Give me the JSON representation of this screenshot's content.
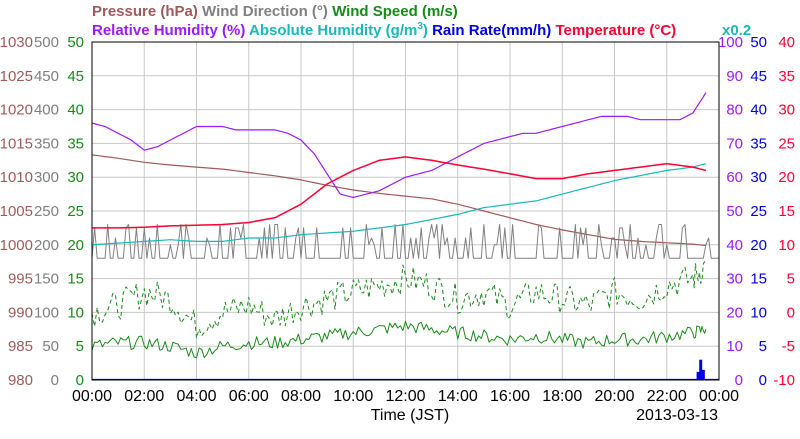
{
  "chart_data": {
    "type": "line",
    "date": "2013-03-13",
    "xlabel": "Time (JST)",
    "x_ticks": [
      "00:00",
      "02:00",
      "04:00",
      "06:00",
      "08:00",
      "10:00",
      "12:00",
      "14:00",
      "16:00",
      "18:00",
      "20:00",
      "22:00",
      "00:00"
    ],
    "x_range_hours": [
      0,
      24
    ],
    "grid": true,
    "legend_line1": [
      {
        "label": "Pressure (hPa)",
        "color": "#a05a5a"
      },
      {
        "label": "Wind Direction (°)",
        "color": "#808080"
      },
      {
        "label": "Wind Speed (m/s)",
        "color": "#1a8a1a"
      }
    ],
    "legend_line2": [
      {
        "label": "Relative Humidity (%)",
        "color": "#9a1aff"
      },
      {
        "label": "Absolute Humidity (g/m",
        "sup": "3",
        "tail": ")",
        "color": "#1ab8b8"
      },
      {
        "label": "Rain Rate(mm/h)",
        "color": "#0000e0"
      },
      {
        "label": "Temperature (°C)",
        "color": "#ff0033"
      }
    ],
    "abs_humidity_note": "x0.2",
    "axes": {
      "pressure": {
        "color": "#a05a5a",
        "range": [
          980,
          1030
        ],
        "ticks": [
          "1030",
          "1025",
          "1020",
          "1015",
          "1010",
          "1005",
          "1000",
          "995",
          "990",
          "985",
          "980"
        ]
      },
      "wind_direction": {
        "color": "#808080",
        "range": [
          0,
          500
        ],
        "ticks": [
          "500",
          "450",
          "400",
          "350",
          "300",
          "250",
          "200",
          "150",
          "100",
          "50",
          "0"
        ]
      },
      "wind_speed": {
        "color": "#1a8a1a",
        "range": [
          0,
          50
        ],
        "ticks": [
          "50",
          "45",
          "40",
          "35",
          "30",
          "25",
          "20",
          "15",
          "10",
          "5",
          "0"
        ]
      },
      "humidity": {
        "color": "#9a1aff",
        "range": [
          0,
          100
        ],
        "ticks": [
          "100",
          "90",
          "80",
          "70",
          "60",
          "50",
          "40",
          "30",
          "20",
          "10",
          "0"
        ]
      },
      "rain_rate": {
        "color": "#0000e0",
        "range": [
          0,
          50
        ],
        "ticks": [
          "50",
          "45",
          "40",
          "35",
          "30",
          "25",
          "20",
          "15",
          "10",
          "5",
          "0"
        ]
      },
      "temperature": {
        "color": "#ff0033",
        "range": [
          -10,
          40
        ],
        "ticks": [
          "40",
          "35",
          "30",
          "25",
          "20",
          "15",
          "10",
          "5",
          "0",
          "-5",
          "-10"
        ]
      }
    },
    "series": [
      {
        "name": "Pressure (hPa)",
        "axis": "pressure",
        "color": "#a05a5a",
        "style": "solid",
        "width": 1.2,
        "x": [
          0,
          1,
          2,
          3,
          4,
          5,
          6,
          7,
          8,
          9,
          10,
          11,
          12,
          13,
          14,
          15,
          16,
          17,
          18,
          19,
          20,
          21,
          22,
          23,
          23.5
        ],
        "y": [
          1013.3,
          1012.8,
          1012.2,
          1011.8,
          1011.5,
          1011.2,
          1010.7,
          1010.2,
          1009.6,
          1008.8,
          1008.1,
          1007.6,
          1007.2,
          1006.8,
          1006.0,
          1005.0,
          1004.0,
          1003.0,
          1002.2,
          1001.5,
          1000.8,
          1000.5,
          1000.3,
          1000.1,
          999.9
        ]
      },
      {
        "name": "Wind Direction (°)",
        "axis": "wind_direction",
        "color": "#808080",
        "style": "spiky",
        "width": 1.0,
        "base": 180,
        "peaks": [
          225,
          200,
          230,
          210,
          225
        ],
        "x": [
          0,
          24
        ],
        "y": [
          180,
          180
        ]
      },
      {
        "name": "Wind Speed (m/s) gust",
        "axis": "wind_speed",
        "color": "#1a8a1a",
        "style": "dashed",
        "width": 1.0,
        "x": [
          0,
          1,
          2,
          3,
          4,
          5,
          6,
          7,
          8,
          9,
          10,
          11,
          12,
          13,
          14,
          15,
          16,
          17,
          18,
          19,
          20,
          21,
          22,
          23,
          23.5
        ],
        "y": [
          10,
          11,
          13,
          12,
          8,
          10,
          11,
          9,
          11,
          12,
          13,
          14,
          15,
          14,
          12,
          13,
          11,
          13,
          12,
          11,
          13,
          12,
          14,
          15,
          17
        ]
      },
      {
        "name": "Wind Speed (m/s)",
        "axis": "wind_speed",
        "color": "#1a8a1a",
        "style": "solid",
        "width": 1.0,
        "x": [
          0,
          1,
          2,
          3,
          4,
          5,
          6,
          7,
          8,
          9,
          10,
          11,
          12,
          13,
          14,
          15,
          16,
          17,
          18,
          19,
          20,
          21,
          22,
          23,
          23.5
        ],
        "y": [
          5,
          5.5,
          5.5,
          5,
          4,
          5,
          5.5,
          5.5,
          6,
          6.5,
          7,
          7.5,
          8,
          7.5,
          7,
          6.5,
          6,
          6.5,
          6,
          5.5,
          6,
          6,
          6.5,
          7,
          7.5
        ]
      },
      {
        "name": "Relative Humidity (%)",
        "axis": "humidity",
        "color": "#9a1aff",
        "style": "solid",
        "width": 1.2,
        "x": [
          0,
          0.5,
          1,
          1.5,
          2,
          2.5,
          3,
          3.5,
          4,
          4.5,
          5,
          5.5,
          6,
          6.5,
          7,
          7.5,
          8,
          8.5,
          9,
          9.5,
          10,
          10.5,
          11,
          11.5,
          12,
          12.5,
          13,
          13.5,
          14,
          14.5,
          15,
          15.5,
          16,
          16.5,
          17,
          17.5,
          18,
          18.5,
          19,
          19.5,
          20,
          20.5,
          21,
          21.5,
          22,
          22.5,
          23,
          23.5
        ],
        "y": [
          76,
          75,
          73,
          71,
          68,
          69,
          71,
          73,
          75,
          75,
          75,
          74,
          74,
          74,
          74,
          73,
          71,
          67,
          61,
          55,
          54,
          55,
          56,
          58,
          60,
          61,
          62,
          64,
          66,
          68,
          70,
          71,
          72,
          73,
          73,
          74,
          75,
          76,
          77,
          78,
          78,
          78,
          77,
          77,
          77,
          77,
          79,
          85
        ]
      },
      {
        "name": "Absolute Humidity (g/m3) x0.2",
        "axis": "humidity",
        "color": "#1ab8b8",
        "style": "solid",
        "width": 1.2,
        "x": [
          0,
          1,
          2,
          3,
          4,
          5,
          6,
          7,
          8,
          9,
          10,
          11,
          12,
          13,
          14,
          15,
          16,
          17,
          18,
          19,
          20,
          21,
          22,
          23,
          23.5
        ],
        "y": [
          40,
          40.5,
          41,
          41.5,
          41,
          41,
          42,
          42,
          43,
          43.5,
          44,
          45,
          46,
          47.5,
          49,
          51,
          52,
          53,
          55,
          57,
          59,
          60.5,
          62,
          63,
          64
        ]
      },
      {
        "name": "Temperature (°C)",
        "axis": "temperature",
        "color": "#ff0033",
        "style": "solid",
        "width": 1.5,
        "x": [
          0,
          1,
          2,
          3,
          4,
          5,
          6,
          7,
          8,
          9,
          10,
          11,
          12,
          13,
          14,
          15,
          16,
          17,
          18,
          19,
          20,
          21,
          22,
          23,
          23.5
        ],
        "y": [
          12.5,
          12.5,
          12.6,
          12.8,
          12.9,
          13.0,
          13.3,
          14.0,
          16.0,
          19.0,
          21.0,
          22.5,
          23.0,
          22.5,
          21.8,
          21.2,
          20.5,
          19.8,
          19.8,
          20.5,
          21.0,
          21.5,
          22.0,
          21.5,
          21.0
        ]
      },
      {
        "name": "Rain Rate(mm/h)",
        "axis": "rain_rate",
        "color": "#0000e0",
        "style": "bar",
        "width": 1.0,
        "x": [
          23.2,
          23.3,
          23.4
        ],
        "y": [
          1.2,
          3.0,
          1.5
        ]
      }
    ]
  }
}
